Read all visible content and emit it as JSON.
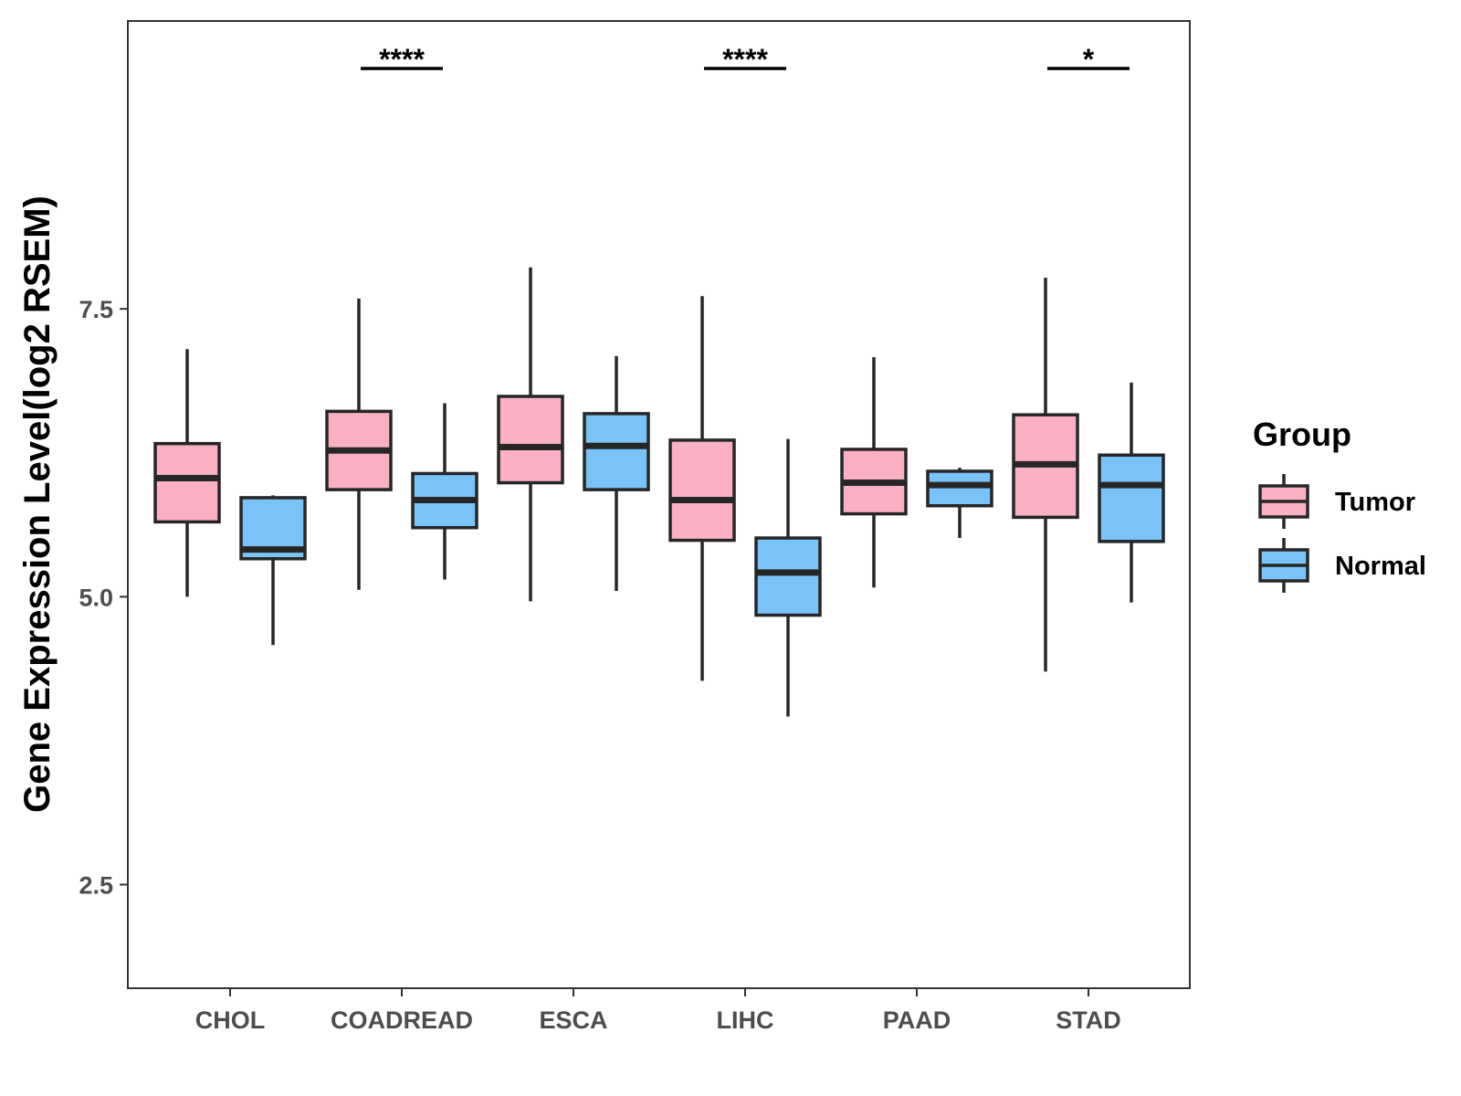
{
  "chart_data": {
    "type": "boxplot",
    "title": "",
    "xlabel": "",
    "ylabel": "Gene Expression Level(log2 RSEM)",
    "ylim": [
      1.6,
      10.0
    ],
    "yticks": [
      2.5,
      5.0,
      7.5
    ],
    "ytick_labels": [
      "2.5",
      "5.0",
      "7.5"
    ],
    "categories": [
      "CHOL",
      "COADREAD",
      "ESCA",
      "LIHC",
      "PAAD",
      "STAD"
    ],
    "series": [
      {
        "name": "Tumor",
        "color": "#FBB1C3",
        "boxes": [
          {
            "lower": 5.0,
            "q1": 5.65,
            "median": 6.03,
            "q3": 6.33,
            "upper": 7.15
          },
          {
            "lower": 5.06,
            "q1": 5.93,
            "median": 6.27,
            "q3": 6.61,
            "upper": 7.59
          },
          {
            "lower": 4.96,
            "q1": 5.99,
            "median": 6.3,
            "q3": 6.74,
            "upper": 7.86
          },
          {
            "lower": 4.27,
            "q1": 5.49,
            "median": 5.84,
            "q3": 6.36,
            "upper": 7.61
          },
          {
            "lower": 5.08,
            "q1": 5.72,
            "median": 5.99,
            "q3": 6.28,
            "upper": 7.08
          },
          {
            "lower": 4.35,
            "q1": 5.69,
            "median": 6.15,
            "q3": 6.58,
            "upper": 7.77
          }
        ]
      },
      {
        "name": "Normal",
        "color": "#79C3F8",
        "boxes": [
          {
            "lower": 4.58,
            "q1": 5.33,
            "median": 5.41,
            "q3": 5.86,
            "upper": 5.88
          },
          {
            "lower": 5.15,
            "q1": 5.6,
            "median": 5.84,
            "q3": 6.07,
            "upper": 6.68
          },
          {
            "lower": 5.05,
            "q1": 5.93,
            "median": 6.31,
            "q3": 6.59,
            "upper": 7.09
          },
          {
            "lower": 3.96,
            "q1": 4.84,
            "median": 5.21,
            "q3": 5.51,
            "upper": 6.37
          },
          {
            "lower": 5.51,
            "q1": 5.79,
            "median": 5.97,
            "q3": 6.09,
            "upper": 6.12
          },
          {
            "lower": 4.95,
            "q1": 5.48,
            "median": 5.97,
            "q3": 6.23,
            "upper": 6.86
          }
        ]
      }
    ],
    "significance": [
      {
        "category": "COADREAD",
        "label": "****"
      },
      {
        "category": "LIHC",
        "label": "****"
      },
      {
        "category": "STAD",
        "label": "*"
      }
    ],
    "legend": {
      "title": "Group",
      "entries": [
        "Tumor",
        "Normal"
      ],
      "placement": "right"
    },
    "grid": false
  }
}
